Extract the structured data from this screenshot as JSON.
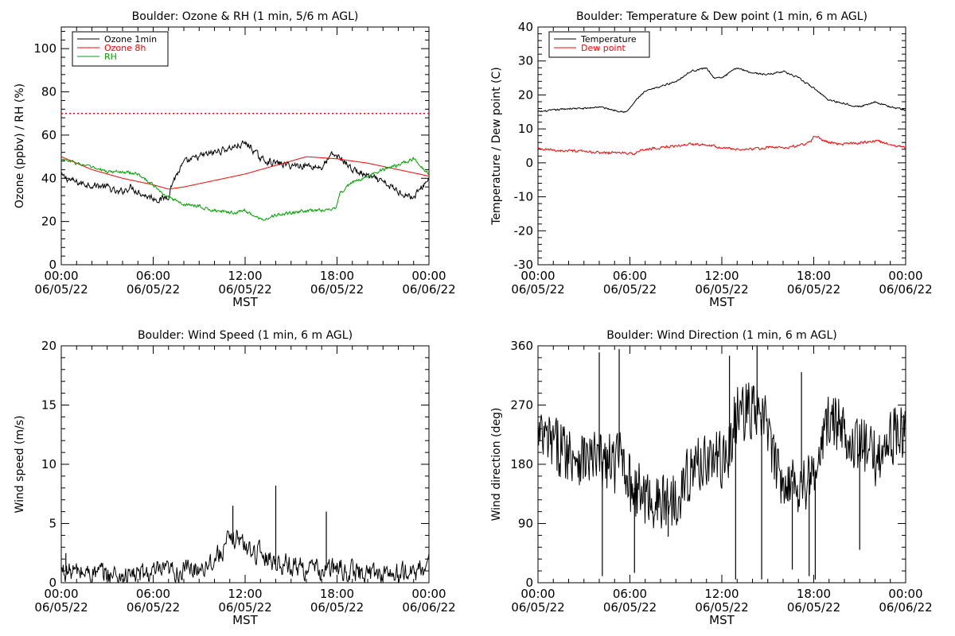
{
  "colors": {
    "black": "#000000",
    "red": "#ff0000",
    "green": "#00a000"
  },
  "chart_data": [
    {
      "type": "line",
      "title": "Boulder: Ozone & RH (1 min, 5/6 m AGL)",
      "ylabel": "Ozone (ppbv) / RH (%)",
      "xlabel": "MST",
      "xlim": [
        0,
        24
      ],
      "ylim": [
        0,
        110
      ],
      "yticks": [
        0,
        20,
        40,
        60,
        80,
        100
      ],
      "x_ticks": [
        {
          "x": 0,
          "time": "00:00",
          "date": "06/05/22"
        },
        {
          "x": 6,
          "time": "06:00",
          "date": "06/05/22"
        },
        {
          "x": 12,
          "time": "12:00",
          "date": "06/05/22"
        },
        {
          "x": 18,
          "time": "18:00",
          "date": "06/05/22"
        },
        {
          "x": 24,
          "time": "00:00",
          "date": "06/06/22"
        }
      ],
      "legend_position": "top-left",
      "reference_line": {
        "y": 70,
        "style": "dotted",
        "color": "#ff0000"
      },
      "series": [
        {
          "name": "Ozone 1min",
          "color": "#000000",
          "noise": 2.5,
          "x": [
            0,
            1,
            2,
            3,
            3.7,
            4.5,
            5.5,
            6.5,
            7.0,
            7.3,
            8,
            9,
            10,
            11,
            12,
            12.3,
            13,
            14,
            15,
            16,
            17,
            17.7,
            18.3,
            19,
            20,
            21,
            22,
            23,
            24
          ],
          "y": [
            41,
            38,
            37,
            36,
            33,
            36,
            32,
            30,
            32,
            39,
            47,
            50,
            52,
            54,
            56,
            55,
            49,
            47,
            46,
            46,
            45,
            51,
            49,
            44,
            41,
            38,
            34,
            31,
            40
          ]
        },
        {
          "name": "Ozone 8h",
          "color": "#ff0000",
          "noise": 0,
          "x": [
            0,
            2,
            4,
            6,
            7,
            8,
            10,
            12,
            14,
            15.5,
            16,
            18,
            20,
            22,
            24
          ],
          "y": [
            50,
            44,
            40,
            37,
            35,
            36,
            39,
            42,
            46,
            49,
            50,
            49,
            47,
            44,
            41
          ]
        },
        {
          "name": "RH",
          "color": "#00a000",
          "noise": 1.2,
          "x": [
            0,
            1,
            2,
            3,
            4,
            5,
            6,
            7,
            8,
            9,
            10,
            11,
            12,
            13,
            14,
            15,
            16,
            17,
            17.9,
            18.2,
            19,
            20,
            21,
            22,
            23,
            24
          ],
          "y": [
            49,
            47,
            45,
            43,
            43,
            42,
            37,
            31,
            28,
            27,
            25,
            24,
            25,
            21,
            23,
            24,
            25,
            25,
            26,
            33,
            38,
            41,
            44,
            46,
            49,
            42
          ]
        }
      ]
    },
    {
      "type": "line",
      "title": "Boulder: Temperature & Dew point (1 min, 6 m AGL)",
      "ylabel": "Temperature / Dew point (C)",
      "xlabel": "MST",
      "xlim": [
        0,
        24
      ],
      "ylim": [
        -30,
        40
      ],
      "yticks": [
        -30,
        -20,
        -10,
        0,
        10,
        20,
        30,
        40
      ],
      "x_ticks": [
        {
          "x": 0,
          "time": "00:00",
          "date": "06/05/22"
        },
        {
          "x": 6,
          "time": "06:00",
          "date": "06/05/22"
        },
        {
          "x": 12,
          "time": "12:00",
          "date": "06/05/22"
        },
        {
          "x": 18,
          "time": "18:00",
          "date": "06/05/22"
        },
        {
          "x": 24,
          "time": "00:00",
          "date": "06/06/22"
        }
      ],
      "legend_position": "top-left",
      "series": [
        {
          "name": "Temperature",
          "color": "#000000",
          "noise": 0.4,
          "x": [
            0,
            1,
            2,
            3,
            4,
            5,
            5.8,
            6.5,
            7,
            8,
            9,
            10,
            11,
            11.5,
            12,
            13,
            14,
            15,
            16,
            17,
            18,
            19,
            20,
            21,
            22,
            23,
            24
          ],
          "y": [
            15,
            15.5,
            16,
            16,
            16.5,
            15.5,
            15,
            19,
            21,
            22.5,
            24,
            27,
            28,
            25,
            25,
            28,
            26.5,
            26,
            27,
            25,
            22,
            18.5,
            17.5,
            16.5,
            18,
            16.5,
            15.5
          ]
        },
        {
          "name": "Dew point",
          "color": "#ff0000",
          "noise": 0.6,
          "x": [
            0,
            2,
            4,
            5.5,
            6,
            7,
            8,
            9,
            10,
            11,
            12,
            13,
            14,
            15,
            16,
            17,
            17.8,
            18,
            19,
            20,
            21,
            22,
            23,
            24
          ],
          "y": [
            4,
            3.5,
            3,
            3,
            2.5,
            4,
            4.5,
            5,
            5.5,
            5.5,
            4.5,
            4,
            4,
            4.5,
            4.5,
            5,
            6,
            8,
            6,
            5.5,
            6,
            6.5,
            5.5,
            4.5
          ]
        }
      ]
    },
    {
      "type": "line",
      "title": "Boulder: Wind Speed (1 min, 6 m AGL)",
      "ylabel": "Wind speed (m/s)",
      "xlabel": "MST",
      "xlim": [
        0,
        24
      ],
      "ylim": [
        0,
        20
      ],
      "yticks": [
        0,
        5,
        10,
        15,
        20
      ],
      "x_ticks": [
        {
          "x": 0,
          "time": "00:00",
          "date": "06/05/22"
        },
        {
          "x": 6,
          "time": "06:00",
          "date": "06/05/22"
        },
        {
          "x": 12,
          "time": "12:00",
          "date": "06/05/22"
        },
        {
          "x": 18,
          "time": "18:00",
          "date": "06/05/22"
        },
        {
          "x": 24,
          "time": "00:00",
          "date": "06/06/22"
        }
      ],
      "series": [
        {
          "name": "",
          "color": "#000000",
          "noise": 1.4,
          "floor": 0,
          "x": [
            0,
            2,
            4,
            6,
            8,
            9,
            10,
            11,
            11.5,
            12,
            13,
            14,
            15,
            16,
            17,
            18,
            19,
            20,
            21,
            22,
            23,
            24
          ],
          "y": [
            1,
            0.8,
            0.6,
            0.8,
            1.0,
            1.3,
            2.0,
            3.5,
            4.0,
            3.0,
            2.5,
            1.8,
            1.5,
            1.2,
            1.0,
            1.2,
            0.9,
            0.8,
            0.8,
            0.7,
            0.9,
            1.5
          ]
        }
      ],
      "spikes": [
        {
          "x": 14.0,
          "y": 8.2
        },
        {
          "x": 17.3,
          "y": 6.0
        },
        {
          "x": 11.2,
          "y": 6.5
        },
        {
          "x": 0.3,
          "y": 2.5
        }
      ]
    },
    {
      "type": "line",
      "title": "Boulder: Wind Direction (1 min, 6 m AGL)",
      "ylabel": "Wind direction (deg)",
      "xlabel": "MST",
      "xlim": [
        0,
        24
      ],
      "ylim": [
        0,
        360
      ],
      "yticks": [
        0,
        90,
        180,
        270,
        360
      ],
      "x_ticks": [
        {
          "x": 0,
          "time": "00:00",
          "date": "06/05/22"
        },
        {
          "x": 6,
          "time": "06:00",
          "date": "06/05/22"
        },
        {
          "x": 12,
          "time": "12:00",
          "date": "06/05/22"
        },
        {
          "x": 18,
          "time": "18:00",
          "date": "06/05/22"
        },
        {
          "x": 24,
          "time": "00:00",
          "date": "06/06/22"
        }
      ],
      "series": [
        {
          "name": "",
          "color": "#000000",
          "noise": 45,
          "floor": 0,
          "ceil": 360,
          "x": [
            0,
            1,
            2,
            3,
            4,
            5,
            5.5,
            6,
            7,
            8,
            9,
            10,
            11,
            12,
            12.5,
            13,
            14,
            15,
            15.5,
            16,
            17,
            18,
            19,
            20,
            21,
            22,
            23,
            24
          ],
          "y": [
            220,
            210,
            200,
            190,
            185,
            180,
            200,
            150,
            130,
            120,
            130,
            170,
            190,
            185,
            200,
            260,
            260,
            240,
            170,
            160,
            150,
            160,
            250,
            230,
            210,
            190,
            220,
            230
          ]
        }
      ],
      "spikes": [
        {
          "x": 4.0,
          "y": 350
        },
        {
          "x": 4.2,
          "y": 10
        },
        {
          "x": 5.3,
          "y": 355
        },
        {
          "x": 6.3,
          "y": 15
        },
        {
          "x": 8.5,
          "y": 70
        },
        {
          "x": 12.5,
          "y": 345
        },
        {
          "x": 12.9,
          "y": 5
        },
        {
          "x": 14.3,
          "y": 360
        },
        {
          "x": 14.6,
          "y": 5
        },
        {
          "x": 16.6,
          "y": 20
        },
        {
          "x": 17.7,
          "y": 10
        },
        {
          "x": 18.1,
          "y": 5
        },
        {
          "x": 17.2,
          "y": 320
        },
        {
          "x": 21.0,
          "y": 50
        }
      ]
    }
  ]
}
